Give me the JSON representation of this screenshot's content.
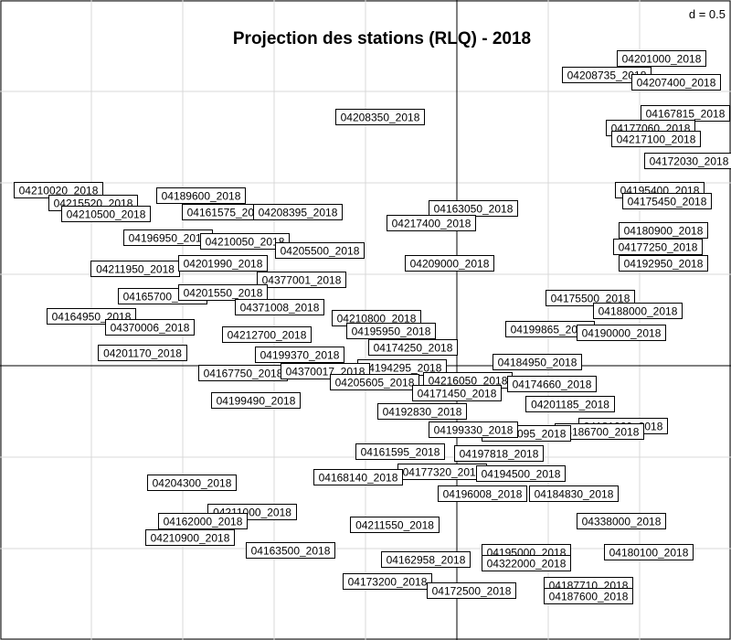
{
  "chart_data": {
    "type": "scatter",
    "title": "Projection des stations (RLQ) - 2018",
    "grid_label": "d = 0.5",
    "grid": true,
    "xlim": [
      -2.5,
      1.5
    ],
    "ylim": [
      -1.5,
      2.0
    ],
    "points": [
      {
        "label": "04201000_2018",
        "x": 1.12,
        "y": 1.68
      },
      {
        "label": "04208735_2018",
        "x": 0.82,
        "y": 1.59
      },
      {
        "label": "04207400_2018",
        "x": 1.2,
        "y": 1.55
      },
      {
        "label": "04208350_2018",
        "x": -0.42,
        "y": 1.36
      },
      {
        "label": "04167815_2018",
        "x": 1.25,
        "y": 1.38
      },
      {
        "label": "04177060_2018",
        "x": 1.06,
        "y": 1.3
      },
      {
        "label": "04217100_2018",
        "x": 1.09,
        "y": 1.24
      },
      {
        "label": "04172030_2018",
        "x": 1.27,
        "y": 1.12
      },
      {
        "label": "04210020_2018",
        "x": -2.18,
        "y": 0.96
      },
      {
        "label": "04189600_2018",
        "x": -1.4,
        "y": 0.93
      },
      {
        "label": "04215520_2018",
        "x": -1.99,
        "y": 0.89
      },
      {
        "label": "04210500_2018",
        "x": -1.92,
        "y": 0.83
      },
      {
        "label": "04161575_2018",
        "x": -1.26,
        "y": 0.84
      },
      {
        "label": "04208395_2018",
        "x": -0.87,
        "y": 0.84
      },
      {
        "label": "04163050_2018",
        "x": 0.09,
        "y": 0.86
      },
      {
        "label": "04217400_2018",
        "x": -0.14,
        "y": 0.78
      },
      {
        "label": "04195400_2018",
        "x": 1.11,
        "y": 0.96
      },
      {
        "label": "04175450_2018",
        "x": 1.15,
        "y": 0.9
      },
      {
        "label": "04180900_2018",
        "x": 1.13,
        "y": 0.74
      },
      {
        "label": "04177250_2018",
        "x": 1.1,
        "y": 0.65
      },
      {
        "label": "04192950_2018",
        "x": 1.13,
        "y": 0.56
      },
      {
        "label": "04196950_2018",
        "x": -1.58,
        "y": 0.7
      },
      {
        "label": "04210050_2018",
        "x": -1.16,
        "y": 0.68
      },
      {
        "label": "04205500_2018",
        "x": -0.75,
        "y": 0.63
      },
      {
        "label": "04211950_2018",
        "x": -1.76,
        "y": 0.53
      },
      {
        "label": "04201990_2018",
        "x": -1.28,
        "y": 0.56
      },
      {
        "label": "04209000_2018",
        "x": -0.04,
        "y": 0.56
      },
      {
        "label": "04377001_2018",
        "x": -0.85,
        "y": 0.47
      },
      {
        "label": "04165700_2018",
        "x": -1.61,
        "y": 0.38
      },
      {
        "label": "04201550_2018",
        "x": -1.28,
        "y": 0.4
      },
      {
        "label": "04371008_2018",
        "x": -0.97,
        "y": 0.32
      },
      {
        "label": "04175500_2018",
        "x": 0.73,
        "y": 0.37
      },
      {
        "label": "04188000_2018",
        "x": 0.99,
        "y": 0.3
      },
      {
        "label": "04164950_2018",
        "x": -2.0,
        "y": 0.27
      },
      {
        "label": "04210800_2018",
        "x": -0.44,
        "y": 0.26
      },
      {
        "label": "04370006_2018",
        "x": -1.68,
        "y": 0.21
      },
      {
        "label": "04195950_2018",
        "x": -0.36,
        "y": 0.19
      },
      {
        "label": "04212700_2018",
        "x": -1.04,
        "y": 0.17
      },
      {
        "label": "04199865_2018",
        "x": 0.51,
        "y": 0.2
      },
      {
        "label": "04190000_2018",
        "x": 0.9,
        "y": 0.18
      },
      {
        "label": "04174250_2018",
        "x": -0.24,
        "y": 0.1
      },
      {
        "label": "04201170_2018",
        "x": -1.72,
        "y": 0.07
      },
      {
        "label": "04199370_2018",
        "x": -0.86,
        "y": 0.06
      },
      {
        "label": "04184950_2018",
        "x": 0.44,
        "y": 0.02
      },
      {
        "label": "04194295_2018",
        "x": -0.3,
        "y": -0.01
      },
      {
        "label": "04167750_2018",
        "x": -1.17,
        "y": -0.04
      },
      {
        "label": "04370017_2018",
        "x": -0.72,
        "y": -0.03
      },
      {
        "label": "04205605_2018",
        "x": -0.45,
        "y": -0.09
      },
      {
        "label": "04216050_2018",
        "x": 0.06,
        "y": -0.08
      },
      {
        "label": "04174660_2018",
        "x": 0.52,
        "y": -0.1
      },
      {
        "label": "04171450_2018",
        "x": 0.0,
        "y": -0.15
      },
      {
        "label": "04199490_2018",
        "x": -1.1,
        "y": -0.19
      },
      {
        "label": "04201185_2018",
        "x": 0.62,
        "y": -0.21
      },
      {
        "label": "04192830_2018",
        "x": -0.19,
        "y": -0.25
      },
      {
        "label": "04181060_2018",
        "x": 0.91,
        "y": -0.33
      },
      {
        "label": "04186700_2018",
        "x": 0.78,
        "y": -0.36
      },
      {
        "label": "04196095_2018",
        "x": 0.38,
        "y": -0.37
      },
      {
        "label": "04199330_2018",
        "x": 0.09,
        "y": -0.35
      },
      {
        "label": "04161595_2018",
        "x": -0.31,
        "y": -0.47
      },
      {
        "label": "04197818_2018",
        "x": 0.23,
        "y": -0.48
      },
      {
        "label": "04177320_2018",
        "x": -0.08,
        "y": -0.58
      },
      {
        "label": "04194500_2018",
        "x": 0.35,
        "y": -0.59
      },
      {
        "label": "04168140_2018",
        "x": -0.54,
        "y": -0.61
      },
      {
        "label": "04204300_2018",
        "x": -1.45,
        "y": -0.64
      },
      {
        "label": "04196008_2018",
        "x": 0.14,
        "y": -0.7
      },
      {
        "label": "04184830_2018",
        "x": 0.64,
        "y": -0.7
      },
      {
        "label": "04211000_2018",
        "x": -1.12,
        "y": -0.8
      },
      {
        "label": "04162000_2018",
        "x": -1.39,
        "y": -0.85
      },
      {
        "label": "04338000_2018",
        "x": 0.9,
        "y": -0.85
      },
      {
        "label": "04211550_2018",
        "x": -0.34,
        "y": -0.87
      },
      {
        "label": "04210900_2018",
        "x": -1.46,
        "y": -0.94
      },
      {
        "label": "04163500_2018",
        "x": -0.91,
        "y": -1.01
      },
      {
        "label": "04195000_2018",
        "x": 0.38,
        "y": -1.02
      },
      {
        "label": "04180100_2018",
        "x": 1.05,
        "y": -1.02
      },
      {
        "label": "04162958_2018",
        "x": -0.17,
        "y": -1.06
      },
      {
        "label": "04322000_2018",
        "x": 0.38,
        "y": -1.08
      },
      {
        "label": "04173200_2018",
        "x": -0.38,
        "y": -1.18
      },
      {
        "label": "04187710_2018",
        "x": 0.72,
        "y": -1.2
      },
      {
        "label": "04172500_2018",
        "x": 0.08,
        "y": -1.23
      },
      {
        "label": "04187600_2018",
        "x": 0.72,
        "y": -1.26
      }
    ]
  }
}
